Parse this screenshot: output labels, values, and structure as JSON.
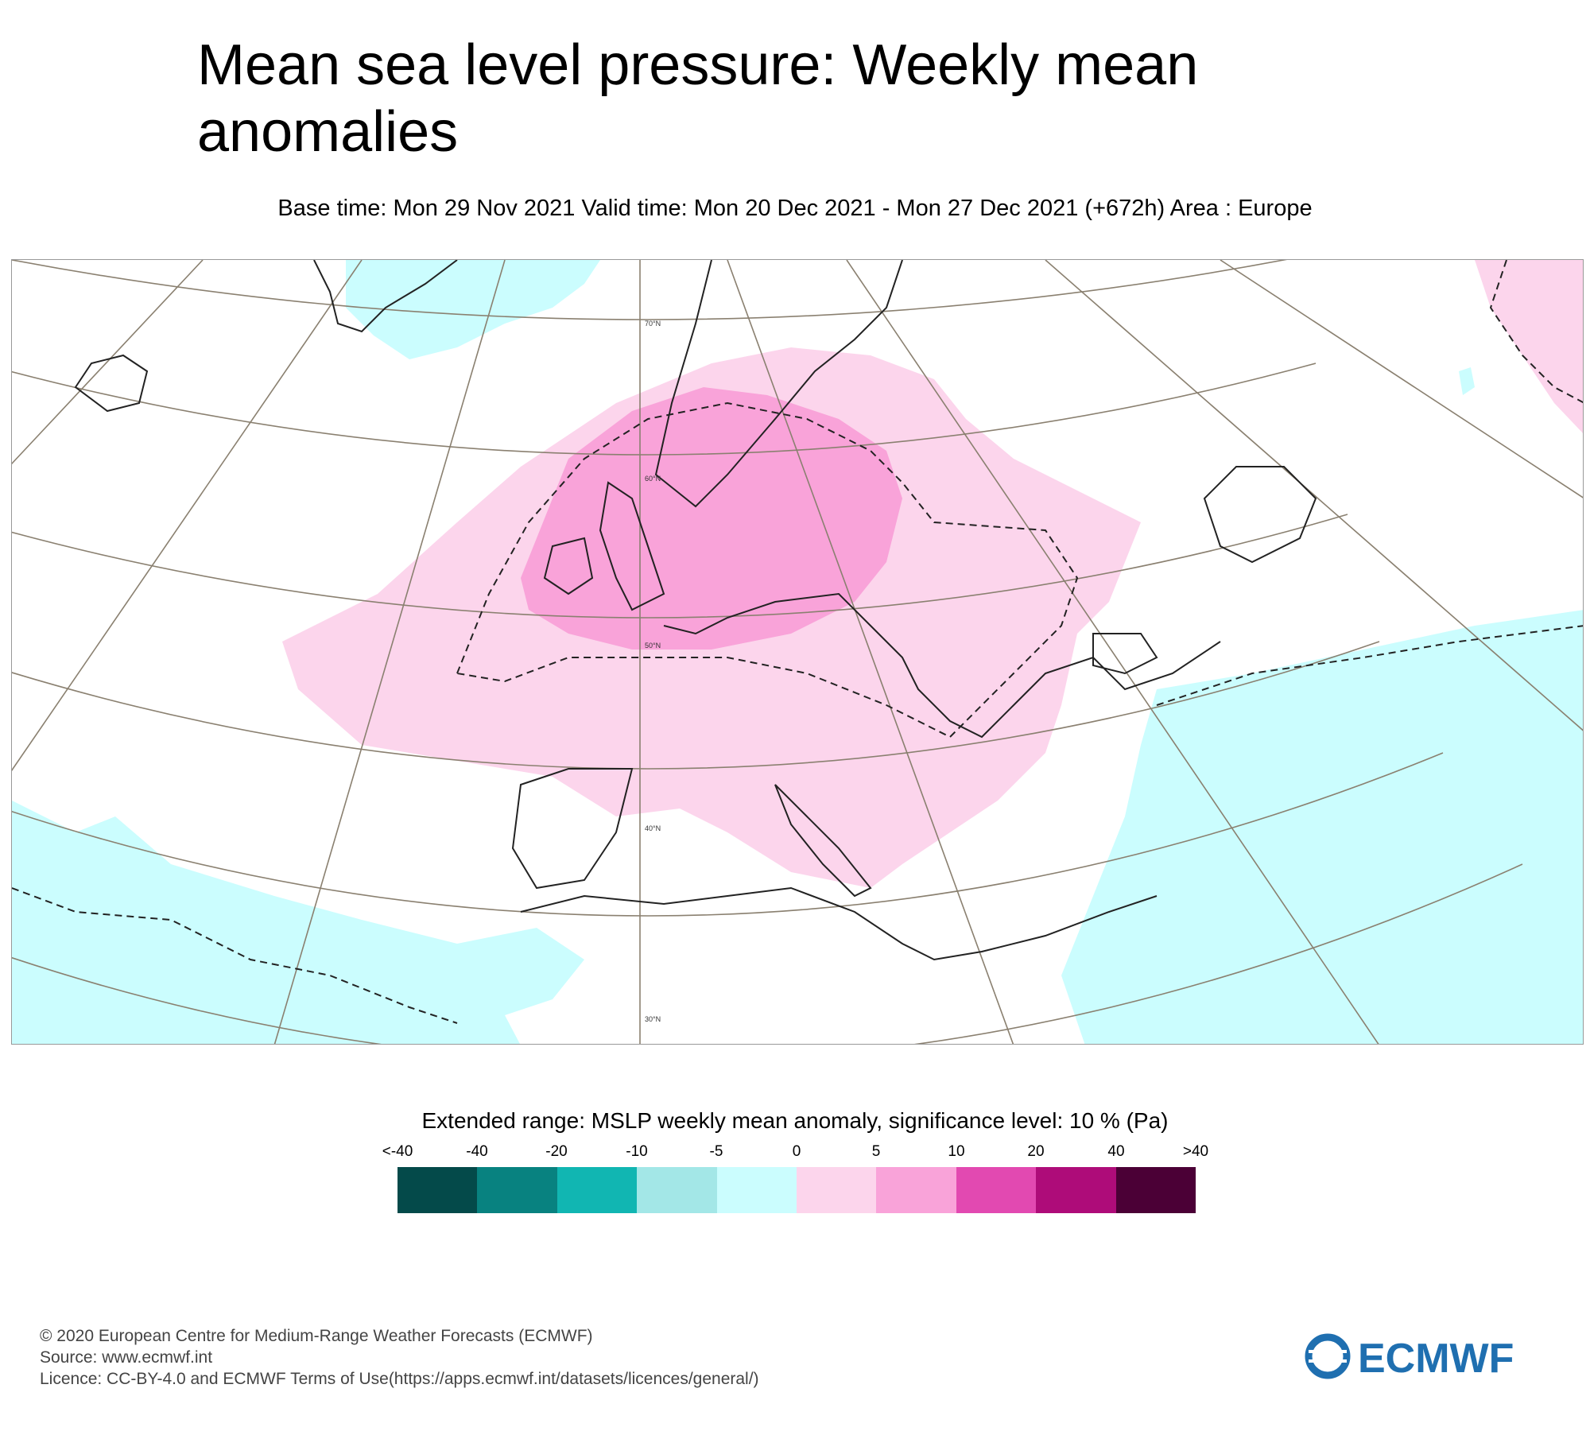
{
  "title": "Mean sea level pressure: Weekly mean anomalies",
  "subtitle": "Base time: Mon 29 Nov 2021 Valid time: Mon 20 Dec 2021 - Mon 27 Dec 2021 (+672h) Area : Europe",
  "map": {
    "latitude_labels": [
      "70°N",
      "60°N",
      "50°N",
      "40°N",
      "30°N"
    ],
    "colors": {
      "ocean_positive": "#fcd5ec",
      "strong_positive": "#f9a3d9",
      "negative": "#cbfdfe",
      "coast": "#222222",
      "graticule": "#8a8070"
    }
  },
  "legend": {
    "title": "Extended range: MSLP weekly mean anomaly, significance level: 10 % (Pa)",
    "ticks": [
      "<-40",
      "-40",
      "-20",
      "-10",
      "-5",
      "0",
      "5",
      "10",
      "20",
      "40",
      ">40"
    ],
    "colors": [
      "#044a4a",
      "#088280",
      "#11b6b2",
      "#a3e7e7",
      "#cbfdfe",
      "#fcd5ec",
      "#f9a3d9",
      "#e249b1",
      "#ae0c79",
      "#4b0036"
    ]
  },
  "footer": {
    "copyright": "© 2020 European Centre for Medium-Range Weather Forecasts (ECMWF)",
    "source": "Source: www.ecmwf.int",
    "licence": "Licence: CC-BY-4.0 and ECMWF Terms of Use(https://apps.ecmwf.int/datasets/licences/general/)"
  },
  "logo": {
    "text": "ECMWF",
    "color": "#1f6fb0"
  }
}
